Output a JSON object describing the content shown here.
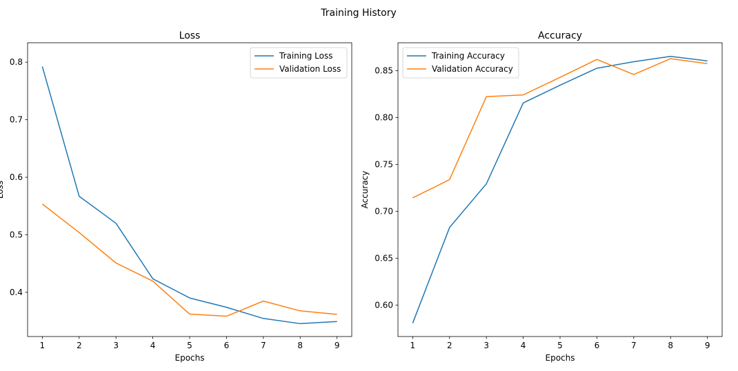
{
  "figure": {
    "suptitle": "Training History"
  },
  "colors": {
    "train": "#1f77b4",
    "val": "#ff7f0e",
    "axis": "#000000",
    "legend_border": "#cccccc"
  },
  "chart_data": [
    {
      "type": "line",
      "title": "Loss",
      "xlabel": "Epochs",
      "ylabel": "Loss",
      "x": [
        1,
        2,
        3,
        4,
        5,
        6,
        7,
        8,
        9
      ],
      "xticks": [
        "1",
        "2",
        "3",
        "4",
        "5",
        "6",
        "7",
        "8",
        "9"
      ],
      "xlim": [
        0.6,
        9.4
      ],
      "ylim": [
        0.3232,
        0.8338
      ],
      "yticks": [
        "0.4",
        "0.5",
        "0.6",
        "0.7",
        "0.8"
      ],
      "ytick_values": [
        0.4,
        0.5,
        0.6,
        0.7,
        0.8
      ],
      "legend_loc": "upper right",
      "grid": false,
      "series": [
        {
          "name": "Training Loss",
          "values": [
            0.7925,
            0.567,
            0.52,
            0.4235,
            0.3902,
            0.374,
            0.3546,
            0.3456,
            0.3493
          ]
        },
        {
          "name": "Validation Loss",
          "values": [
            0.5535,
            0.504,
            0.451,
            0.4195,
            0.3621,
            0.3585,
            0.3848,
            0.3678,
            0.3617
          ]
        }
      ]
    },
    {
      "type": "line",
      "title": "Accuracy",
      "xlabel": "Epochs",
      "ylabel": "Accuracy",
      "x": [
        1,
        2,
        3,
        4,
        5,
        6,
        7,
        8,
        9
      ],
      "xticks": [
        "1",
        "2",
        "3",
        "4",
        "5",
        "6",
        "7",
        "8",
        "9"
      ],
      "xlim": [
        0.6,
        9.4
      ],
      "ylim": [
        0.5664,
        0.8798
      ],
      "yticks": [
        "0.60",
        "0.65",
        "0.70",
        "0.75",
        "0.80",
        "0.85"
      ],
      "ytick_values": [
        0.6,
        0.65,
        0.7,
        0.75,
        0.8,
        0.85
      ],
      "legend_loc": "upper left",
      "grid": false,
      "series": [
        {
          "name": "Training Accuracy",
          "values": [
            0.5807,
            0.6827,
            0.7293,
            0.8156,
            0.8345,
            0.8526,
            0.8596,
            0.8653,
            0.8604
          ]
        },
        {
          "name": "Validation Accuracy",
          "values": [
            0.7143,
            0.7338,
            0.8223,
            0.8242,
            0.8429,
            0.862,
            0.8459,
            0.8628,
            0.8575
          ]
        }
      ]
    }
  ]
}
